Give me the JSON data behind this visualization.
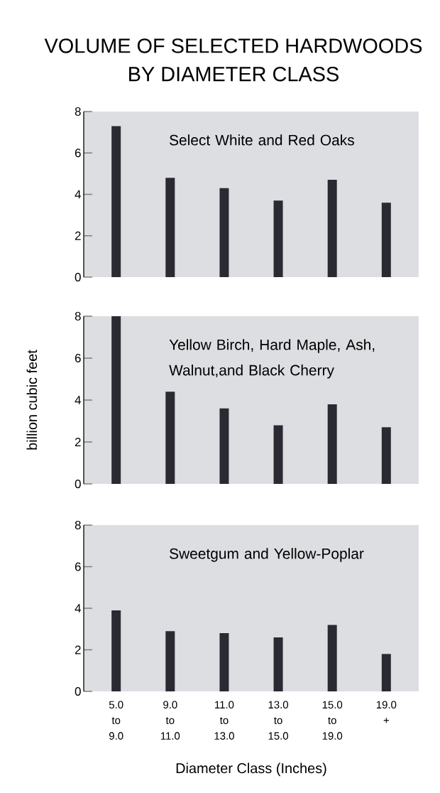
{
  "chart_data": [
    {
      "type": "bar",
      "title": "VOLUME OF SELECTED HARDWOODS BY DIAMETER CLASS",
      "subtitle": "Select White and Red Oaks",
      "categories": [
        null,
        null,
        null,
        null,
        null,
        null
      ],
      "values": [
        7.3,
        4.8,
        4.3,
        3.7,
        4.7,
        3.6
      ],
      "color": "#2b2a33",
      "ylim": [
        0,
        8
      ],
      "yticks": [
        0,
        2,
        4,
        6,
        8
      ]
    },
    {
      "type": "bar",
      "subtitle": "Yellow Birch, Hard Maple, Ash, Walnut,and Black Cherry",
      "ylabel": "billion cubic feet",
      "categories": [
        null,
        null,
        null,
        null,
        null,
        null
      ],
      "values": [
        8,
        4.4,
        3.6,
        2.8,
        3.8,
        2.7
      ],
      "color": "#2b2a33",
      "ylim": [
        0,
        8
      ],
      "yticks": [
        0,
        2,
        4,
        6,
        8
      ]
    },
    {
      "type": "bar",
      "subtitle": "Sweetgum and Yellow-Poplar",
      "xlabel": "Diameter Class (Inches)",
      "categories": [
        "5.0 to 9.0",
        "9.0 to 11.0",
        "11.0 to 13.0",
        "13.0 to 15.0",
        "15.0 to 19.0",
        "19.0 +"
      ],
      "values": [
        3.9,
        2.9,
        2.8,
        2.6,
        3.2,
        1.8
      ],
      "color": "#2b2a33",
      "ylim": [
        0,
        8
      ],
      "yticks": [
        0,
        2,
        4,
        6,
        8
      ]
    }
  ]
}
